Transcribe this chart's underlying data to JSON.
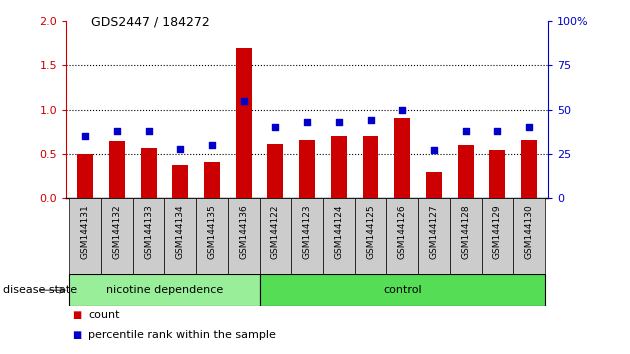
{
  "title": "GDS2447 / 184272",
  "samples": [
    "GSM144131",
    "GSM144132",
    "GSM144133",
    "GSM144134",
    "GSM144135",
    "GSM144136",
    "GSM144122",
    "GSM144123",
    "GSM144124",
    "GSM144125",
    "GSM144126",
    "GSM144127",
    "GSM144128",
    "GSM144129",
    "GSM144130"
  ],
  "counts": [
    0.5,
    0.65,
    0.57,
    0.38,
    0.41,
    1.7,
    0.61,
    0.66,
    0.7,
    0.7,
    0.91,
    0.3,
    0.6,
    0.55,
    0.66
  ],
  "percentiles": [
    35,
    38,
    38,
    28,
    30,
    55,
    40,
    43,
    43,
    44,
    50,
    27,
    38,
    38,
    40
  ],
  "nicotine_count": 6,
  "bar_color": "#cc0000",
  "dot_color": "#0000cc",
  "nicotine_color": "#99ee99",
  "control_color": "#55dd55",
  "ylim_left": [
    0,
    2
  ],
  "ylim_right": [
    0,
    100
  ],
  "yticks_left": [
    0,
    0.5,
    1.0,
    1.5,
    2.0
  ],
  "yticks_right": [
    0,
    25,
    50,
    75,
    100
  ],
  "label_count": "count",
  "label_percentile": "percentile rank within the sample",
  "bar_width": 0.5
}
